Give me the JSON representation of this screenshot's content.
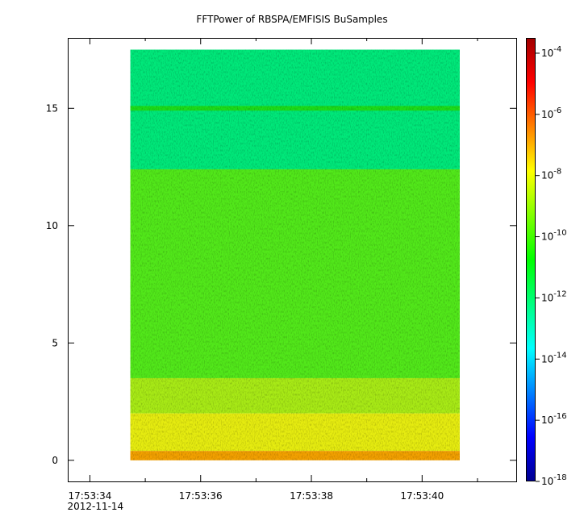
{
  "title": "FFTPower of RBSPA/EMFISIS  BuSamples",
  "colors": {
    "background": "#ffffff",
    "axis": "#000000",
    "colorbar_stops": [
      "#00008f",
      "#0000ff",
      "#0080ff",
      "#00ffff",
      "#00ff80",
      "#00ff00",
      "#80ff00",
      "#ffff00",
      "#ff8000",
      "#ff0000",
      "#a00000"
    ]
  },
  "chart_data": {
    "type": "heatmap",
    "title": "FFTPower of RBSPA/EMFISIS  BuSamples",
    "xlabel": "",
    "ylabel": "",
    "x": {
      "date_label": "2012-11-14",
      "tick_labels": [
        "17:53:34",
        "17:53:36",
        "17:53:38",
        "17:53:40"
      ],
      "tick_values_sec": [
        34,
        36,
        38,
        40
      ],
      "minor_tick_values_sec": [
        35,
        37,
        39,
        41
      ],
      "range_sec": [
        33.6,
        41.7
      ],
      "data_range_sec": [
        34.73,
        40.68
      ]
    },
    "y": {
      "ticks": [
        0,
        5,
        10,
        15
      ],
      "range": [
        -0.9,
        18.0
      ],
      "data_range": [
        0,
        17.5
      ]
    },
    "colorbar": {
      "scale": "log",
      "range_exp": [
        -18,
        -3.5
      ],
      "tick_exps": [
        -18,
        -16,
        -14,
        -12,
        -10,
        -8,
        -6,
        -4
      ],
      "tick_labels": [
        "10-18",
        "10-16",
        "10-14",
        "10-12",
        "10-10",
        "10-8",
        "10-6",
        "10-4"
      ]
    },
    "bands": [
      {
        "y_from": 12.4,
        "y_to": 17.5,
        "log10_power": -12.8,
        "color": "#00e87a"
      },
      {
        "y_from": 14.9,
        "y_to": 15.1,
        "log10_power": -11.2,
        "color": "#1ddc1a"
      },
      {
        "y_from": 3.5,
        "y_to": 12.4,
        "log10_power": -10.2,
        "color": "#52e81a"
      },
      {
        "y_from": 2.0,
        "y_to": 3.5,
        "log10_power": -9.2,
        "color": "#a8ea16"
      },
      {
        "y_from": 0.4,
        "y_to": 2.0,
        "log10_power": -8.2,
        "color": "#e6ec10"
      },
      {
        "y_from": 0.0,
        "y_to": 0.4,
        "log10_power": -7.0,
        "color": "#f2a000"
      }
    ]
  }
}
